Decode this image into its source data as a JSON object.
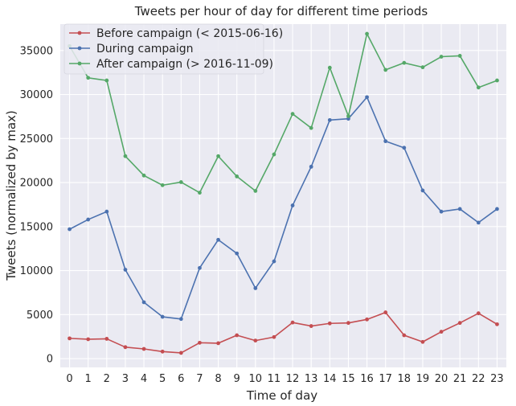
{
  "chart_data": {
    "type": "line",
    "title": "Tweets per hour of day for different time periods",
    "xlabel": "Time of day",
    "ylabel": "Tweets (normalized by max)",
    "x": [
      0,
      1,
      2,
      3,
      4,
      5,
      6,
      7,
      8,
      9,
      10,
      11,
      12,
      13,
      14,
      15,
      16,
      17,
      18,
      19,
      20,
      21,
      22,
      23
    ],
    "xticks": [
      "0",
      "1",
      "2",
      "3",
      "4",
      "5",
      "6",
      "7",
      "8",
      "9",
      "10",
      "11",
      "12",
      "13",
      "14",
      "15",
      "16",
      "17",
      "18",
      "19",
      "20",
      "21",
      "22",
      "23"
    ],
    "yticks": [
      0,
      5000,
      10000,
      15000,
      20000,
      25000,
      30000,
      35000
    ],
    "ytick_labels": [
      "0",
      "5000",
      "10000",
      "15000",
      "20000",
      "25000",
      "30000",
      "35000"
    ],
    "ylim": [
      -1000,
      38000
    ],
    "xlim": [
      -0.5,
      23.5
    ],
    "grid": true,
    "background": "#eaeaf2",
    "legend_position": "top-left",
    "series": [
      {
        "name": "Before campaign (< 2015-06-16)",
        "color": "#c44e52",
        "values": [
          2300,
          2200,
          2250,
          1300,
          1100,
          800,
          650,
          1800,
          1750,
          2650,
          2050,
          2450,
          4100,
          3700,
          4000,
          4050,
          4450,
          5250,
          2650,
          1900,
          3050,
          4050,
          5150,
          3900
        ]
      },
      {
        "name": "During campaign",
        "color": "#4c72b0",
        "values": [
          14700,
          15800,
          16700,
          10100,
          6400,
          4750,
          4500,
          10300,
          13500,
          11950,
          8000,
          11050,
          17400,
          21800,
          27100,
          27250,
          29700,
          24700,
          23950,
          19100,
          16700,
          17000,
          15450,
          17000
        ]
      },
      {
        "name": "After campaign (> 2016-11-09)",
        "color": "#55a868",
        "values": [
          35500,
          31900,
          31600,
          23000,
          20800,
          19700,
          20050,
          18850,
          23000,
          20700,
          19050,
          23200,
          27800,
          26200,
          33050,
          27550,
          36900,
          32800,
          33600,
          33100,
          34300,
          34400,
          30800,
          31600
        ]
      }
    ]
  }
}
